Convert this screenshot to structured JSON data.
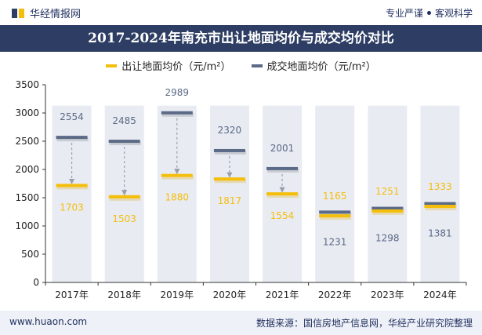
{
  "header": {
    "brand": "华经情报网",
    "tagline_left": "专业严谨",
    "tagline_right": "客观科学"
  },
  "footer": {
    "website": "www.huaon.com",
    "source": "数据来源：国信房地产信息网，华经产业研究院整理"
  },
  "colors": {
    "listing": "#f5be0b",
    "transaction": "#5b6a86",
    "column_bg": "#e8ebf2",
    "title_bg": "#2d3d63"
  },
  "chart_data": {
    "type": "bar",
    "title": "2017-2024年南充市出让地面均价与成交均价对比",
    "categories": [
      "2017年",
      "2018年",
      "2019年",
      "2020年",
      "2021年",
      "2022年",
      "2023年",
      "2024年"
    ],
    "series": [
      {
        "name": "出让地面均价（元/m²）",
        "values": [
          1703,
          1503,
          1880,
          1817,
          1554,
          1165,
          1251,
          1333
        ]
      },
      {
        "name": "成交地面均价（元/m²）",
        "values": [
          2554,
          2485,
          2989,
          2320,
          2001,
          1231,
          1298,
          1381
        ]
      }
    ],
    "ylim": [
      0,
      3500
    ],
    "yticks": [
      0,
      500,
      1000,
      1500,
      2000,
      2500,
      3000,
      3500
    ],
    "xlabel": "",
    "ylabel": "",
    "legend": "top-center",
    "grid": false
  }
}
